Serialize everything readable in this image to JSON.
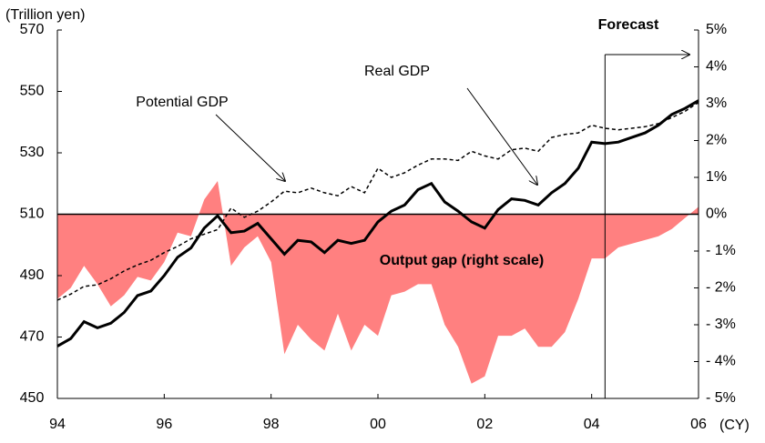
{
  "chart_data": {
    "type": "line",
    "y_label": "(Trillion yen)",
    "x_label": "(CY)",
    "annotations": {
      "forecast": "Forecast",
      "real": "Real GDP",
      "potential": "Potential GDP",
      "gap": "Output gap (right scale)"
    },
    "x": [
      1994,
      1994.25,
      1994.5,
      1994.75,
      1995,
      1995.25,
      1995.5,
      1995.75,
      1996,
      1996.25,
      1996.5,
      1996.75,
      1997,
      1997.25,
      1997.5,
      1997.75,
      1998,
      1998.25,
      1998.5,
      1998.75,
      1999,
      1999.25,
      1999.5,
      1999.75,
      2000,
      2000.25,
      2000.5,
      2000.75,
      2001,
      2001.25,
      2001.5,
      2001.75,
      2002,
      2002.25,
      2002.5,
      2002.75,
      2003,
      2003.25,
      2003.5,
      2003.75,
      2004,
      2004.25,
      2004.5,
      2004.75,
      2005,
      2005.25,
      2005.5,
      2005.75,
      2006
    ],
    "series": [
      {
        "name": "Output gap",
        "type": "area",
        "axis": "y2",
        "color": "#ff8080",
        "values": [
          -2.3,
          -2.0,
          -1.4,
          -1.9,
          -2.5,
          -2.2,
          -1.7,
          -1.8,
          -1.3,
          -0.5,
          -0.6,
          0.4,
          0.9,
          -1.4,
          -0.9,
          -0.6,
          -1.3,
          -3.8,
          -3.0,
          -3.4,
          -3.7,
          -2.7,
          -3.7,
          -3.0,
          -3.3,
          -2.2,
          -2.1,
          -1.9,
          -1.9,
          -3.0,
          -3.6,
          -4.6,
          -4.4,
          -3.3,
          -3.3,
          -3.1,
          -3.6,
          -3.6,
          -3.2,
          -2.3,
          -1.2,
          -1.2,
          -0.9,
          -0.8,
          -0.7,
          -0.6,
          -0.4,
          -0.1,
          0.2
        ]
      },
      {
        "name": "Potential GDP",
        "type": "line",
        "dash": true,
        "color": "#000000",
        "values": [
          482,
          484,
          486.5,
          487,
          489,
          491.5,
          493.5,
          495,
          497.5,
          499.5,
          502,
          503.5,
          505,
          512,
          509,
          511,
          514,
          517.5,
          517,
          518.5,
          517,
          516,
          519,
          517,
          525,
          522,
          523.5,
          526,
          528,
          528,
          527.5,
          530.5,
          529,
          528,
          531,
          531.5,
          530.5,
          535,
          536,
          536.5,
          539,
          538,
          537.5,
          538,
          538.5,
          539.5,
          541.5,
          543.5,
          546.5
        ]
      },
      {
        "name": "Real GDP",
        "type": "line",
        "dash": false,
        "color": "#000000",
        "values": [
          467,
          469.5,
          475,
          473,
          474.5,
          478,
          483.5,
          485,
          490,
          496,
          499,
          505.5,
          509.5,
          504,
          504.5,
          507,
          502,
          497,
          501.5,
          501,
          497.5,
          501.5,
          500.5,
          501.5,
          507.5,
          511,
          513,
          518,
          520,
          514,
          511,
          507.5,
          505.5,
          511.5,
          515,
          514.5,
          513,
          517,
          520,
          525,
          533.5,
          533,
          533.5,
          535,
          536.5,
          539,
          542.5,
          544.5,
          547
        ]
      }
    ],
    "forecast_start": 2004.25,
    "xlim": [
      1994,
      2006
    ],
    "xticks": [
      {
        "value": 1994,
        "label": "94"
      },
      {
        "value": 1996,
        "label": "96"
      },
      {
        "value": 1998,
        "label": "98"
      },
      {
        "value": 2000,
        "label": "00"
      },
      {
        "value": 2002,
        "label": "02"
      },
      {
        "value": 2004,
        "label": "04"
      },
      {
        "value": 2006,
        "label": "06"
      }
    ],
    "ylim": [
      450,
      570
    ],
    "yticks": [
      450,
      470,
      490,
      510,
      530,
      550,
      570
    ],
    "y2lim": [
      -5,
      5
    ],
    "y2ticks": [
      {
        "value": -5,
        "label": "- 5%"
      },
      {
        "value": -4,
        "label": "- 4%"
      },
      {
        "value": -3,
        "label": "- 3%"
      },
      {
        "value": -2,
        "label": "- 2%"
      },
      {
        "value": -1,
        "label": "- 1%"
      },
      {
        "value": 0,
        "label": "0%"
      },
      {
        "value": 1,
        "label": "1%"
      },
      {
        "value": 2,
        "label": "2%"
      },
      {
        "value": 3,
        "label": "3%"
      },
      {
        "value": 4,
        "label": "4%"
      },
      {
        "value": 5,
        "label": "5%"
      }
    ],
    "grid": false
  }
}
